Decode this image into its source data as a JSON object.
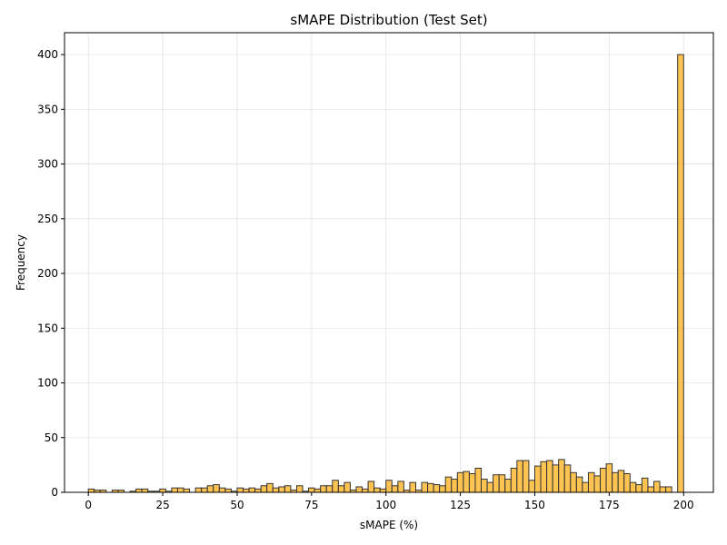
{
  "chart_data": {
    "type": "bar",
    "title": "sMAPE Distribution (Test Set)",
    "xlabel": "sMAPE (%)",
    "ylabel": "Frequency",
    "xlim": [
      -8,
      210
    ],
    "ylim": [
      0,
      420
    ],
    "xticks": [
      0,
      25,
      50,
      75,
      100,
      125,
      150,
      175,
      200
    ],
    "yticks": [
      0,
      50,
      100,
      150,
      200,
      250,
      300,
      350,
      400
    ],
    "grid": true,
    "bar_color": "#FFB833",
    "edge_color": "#333333",
    "bin_width": 2,
    "bin_start": 0,
    "counts": [
      3,
      2,
      2,
      0,
      2,
      2,
      0,
      1,
      3,
      3,
      1,
      1,
      3,
      1,
      4,
      4,
      3,
      0,
      4,
      4,
      6,
      7,
      4,
      3,
      1,
      4,
      3,
      4,
      3,
      6,
      8,
      4,
      5,
      6,
      2,
      6,
      1,
      4,
      3,
      6,
      6,
      11,
      6,
      9,
      2,
      5,
      3,
      10,
      4,
      3,
      11,
      6,
      10,
      2,
      9,
      2,
      9,
      8,
      7,
      6,
      14,
      12,
      18,
      19,
      17,
      22,
      12,
      9,
      16,
      16,
      12,
      22,
      29,
      29,
      11,
      24,
      28,
      29,
      25,
      30,
      25,
      18,
      14,
      9,
      18,
      15,
      22,
      26,
      18,
      20,
      17,
      9,
      7,
      13,
      5,
      10,
      5,
      5,
      0,
      400
    ]
  }
}
